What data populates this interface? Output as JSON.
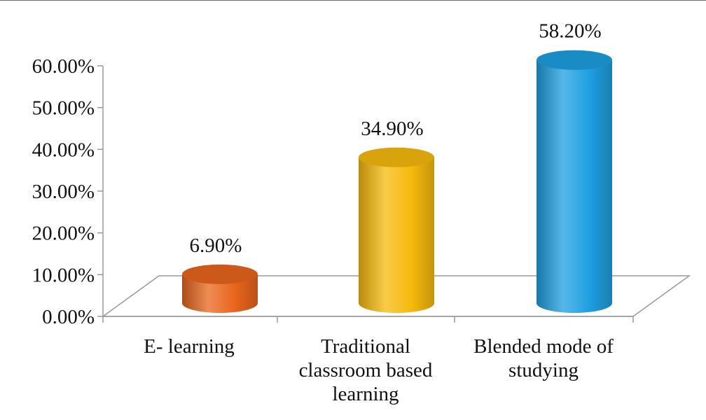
{
  "chart_data": {
    "type": "bar",
    "style": "3d-cylinder",
    "categories": [
      [
        "E- learning"
      ],
      [
        "Traditional",
        "classroom based",
        "learning"
      ],
      [
        "Blended mode of",
        "studying"
      ]
    ],
    "values": [
      6.9,
      34.9,
      58.2
    ],
    "data_labels": [
      "6.90%",
      "34.90%",
      "58.20%"
    ],
    "ylim": [
      0,
      60
    ],
    "yticks": [
      "0.00%",
      "10.00%",
      "20.00%",
      "30.00%",
      "40.00%",
      "50.00%",
      "60.00%"
    ],
    "colors": [
      "#e8651c",
      "#f6b90c",
      "#1e9fe0"
    ],
    "title": "",
    "xlabel": "",
    "ylabel": "",
    "grid": false,
    "legend": "none"
  }
}
